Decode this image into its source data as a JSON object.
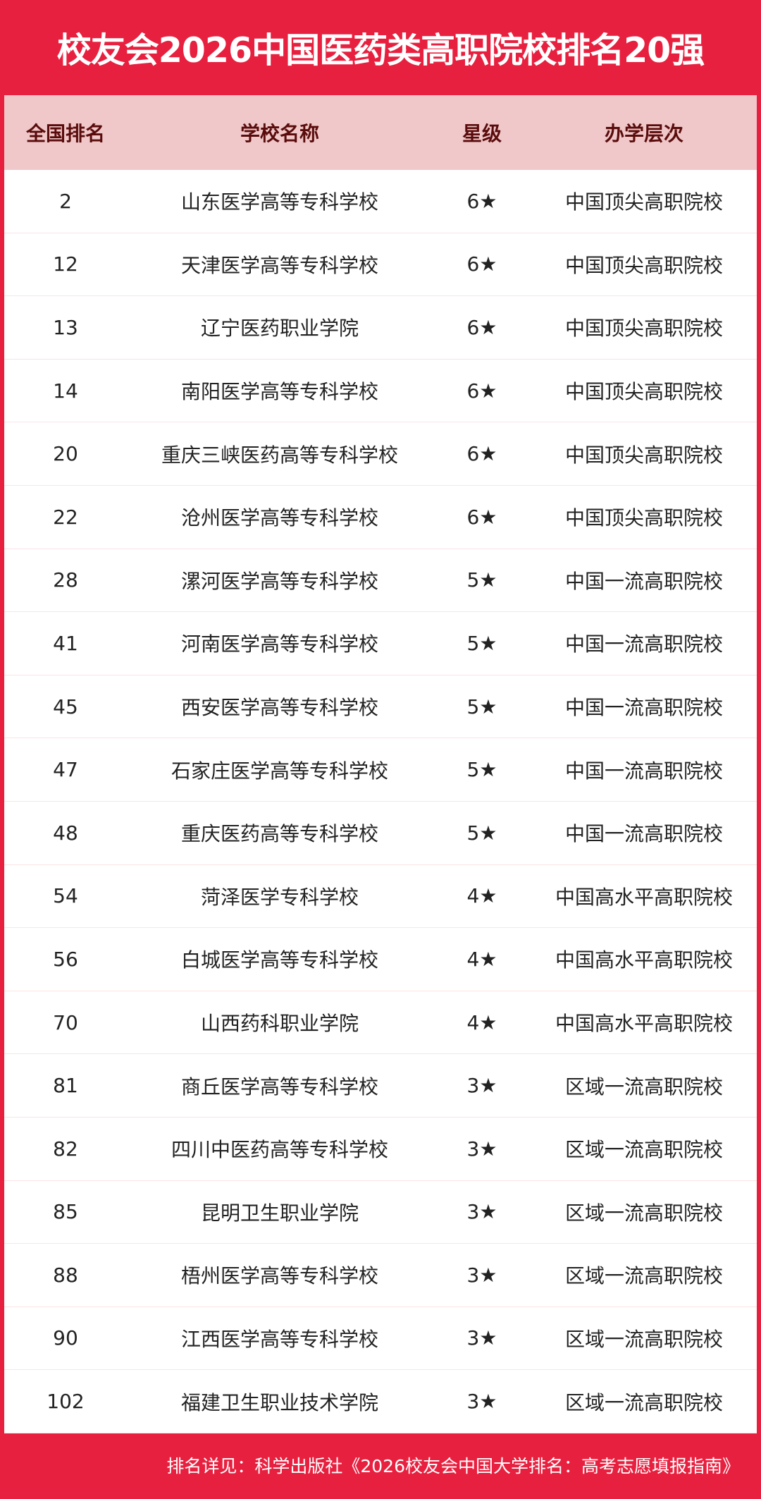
{
  "title": "校友会2026中国医药类高职院校排名20强",
  "colors": {
    "brand": "#e8203f",
    "header_bg": "#f0c8c9",
    "header_text": "#5a0c0c"
  },
  "table": {
    "headers": [
      "全国排名",
      "学校名称",
      "星级",
      "办学层次"
    ],
    "rows": [
      [
        "2",
        "山东医学高等专科学校",
        "6★",
        "中国顶尖高职院校"
      ],
      [
        "12",
        "天津医学高等专科学校",
        "6★",
        "中国顶尖高职院校"
      ],
      [
        "13",
        "辽宁医药职业学院",
        "6★",
        "中国顶尖高职院校"
      ],
      [
        "14",
        "南阳医学高等专科学校",
        "6★",
        "中国顶尖高职院校"
      ],
      [
        "20",
        "重庆三峡医药高等专科学校",
        "6★",
        "中国顶尖高职院校"
      ],
      [
        "22",
        "沧州医学高等专科学校",
        "6★",
        "中国顶尖高职院校"
      ],
      [
        "28",
        "漯河医学高等专科学校",
        "5★",
        "中国一流高职院校"
      ],
      [
        "41",
        "河南医学高等专科学校",
        "5★",
        "中国一流高职院校"
      ],
      [
        "45",
        "西安医学高等专科学校",
        "5★",
        "中国一流高职院校"
      ],
      [
        "47",
        "石家庄医学高等专科学校",
        "5★",
        "中国一流高职院校"
      ],
      [
        "48",
        "重庆医药高等专科学校",
        "5★",
        "中国一流高职院校"
      ],
      [
        "54",
        "菏泽医学专科学校",
        "4★",
        "中国高水平高职院校"
      ],
      [
        "56",
        "白城医学高等专科学校",
        "4★",
        "中国高水平高职院校"
      ],
      [
        "70",
        "山西药科职业学院",
        "4★",
        "中国高水平高职院校"
      ],
      [
        "81",
        "商丘医学高等专科学校",
        "3★",
        "区域一流高职院校"
      ],
      [
        "82",
        "四川中医药高等专科学校",
        "3★",
        "区域一流高职院校"
      ],
      [
        "85",
        "昆明卫生职业学院",
        "3★",
        "区域一流高职院校"
      ],
      [
        "88",
        "梧州医学高等专科学校",
        "3★",
        "区域一流高职院校"
      ],
      [
        "90",
        "江西医学高等专科学校",
        "3★",
        "区域一流高职院校"
      ],
      [
        "102",
        "福建卫生职业技术学院",
        "3★",
        "区域一流高职院校"
      ]
    ]
  },
  "footer": "排名详见：科学出版社《2026校友会中国大学排名：高考志愿填报指南》"
}
